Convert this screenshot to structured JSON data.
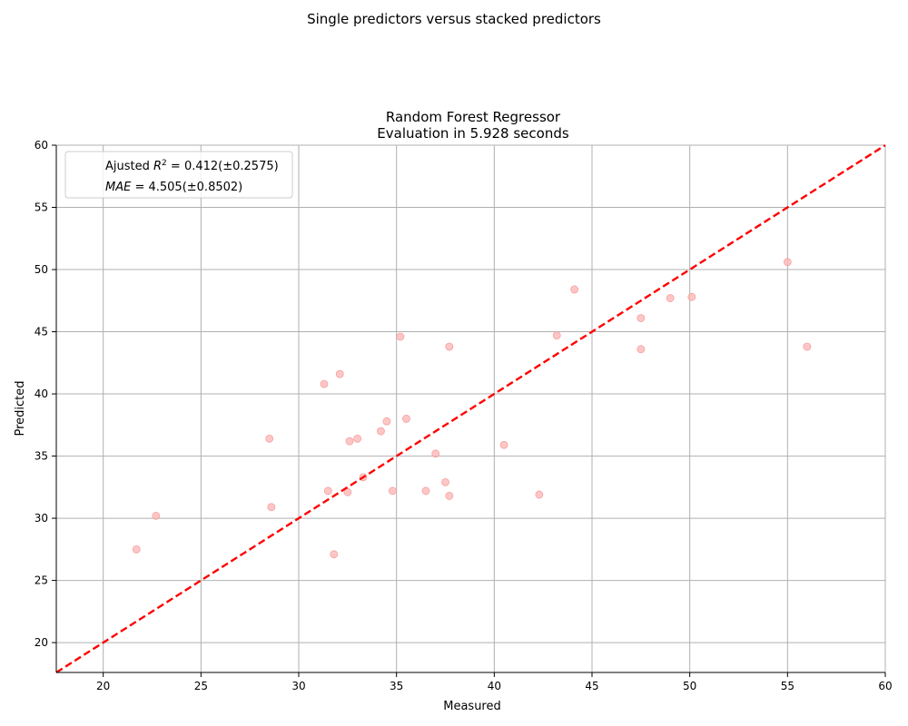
{
  "figure": {
    "suptitle": "Single predictors versus stacked predictors"
  },
  "chart_data": {
    "type": "scatter",
    "title_line1": "Random Forest Regressor",
    "title_line2": "Evaluation in 5.928 seconds",
    "xlabel": "Measured",
    "ylabel": "Predicted",
    "xlim": [
      17.6,
      60
    ],
    "ylim": [
      17.6,
      60
    ],
    "xticks": [
      20,
      25,
      30,
      35,
      40,
      45,
      50,
      55,
      60
    ],
    "yticks": [
      20,
      25,
      30,
      35,
      40,
      45,
      50,
      55,
      60
    ],
    "grid": true,
    "legend_position": "upper-left",
    "legend": {
      "r2_prefix": "Ajusted ",
      "r2_value": " = 0.412(±0.2575)",
      "mae_value": " = 4.505(±0.8502)"
    },
    "reference_line": {
      "style": "dashed",
      "color": "#ff0000",
      "from": [
        17.6,
        17.6
      ],
      "to": [
        60,
        60
      ]
    },
    "point_color": "#ffb3b3",
    "points": [
      {
        "x": 21.7,
        "y": 27.5
      },
      {
        "x": 22.7,
        "y": 30.2
      },
      {
        "x": 28.5,
        "y": 36.4
      },
      {
        "x": 28.6,
        "y": 30.9
      },
      {
        "x": 31.3,
        "y": 40.8
      },
      {
        "x": 31.5,
        "y": 32.2
      },
      {
        "x": 31.8,
        "y": 27.1
      },
      {
        "x": 32.1,
        "y": 41.6
      },
      {
        "x": 32.5,
        "y": 32.1
      },
      {
        "x": 32.6,
        "y": 36.2
      },
      {
        "x": 33.0,
        "y": 36.4
      },
      {
        "x": 33.3,
        "y": 33.3
      },
      {
        "x": 34.2,
        "y": 37.0
      },
      {
        "x": 34.5,
        "y": 37.8
      },
      {
        "x": 34.8,
        "y": 32.2
      },
      {
        "x": 35.2,
        "y": 44.6
      },
      {
        "x": 35.5,
        "y": 38.0
      },
      {
        "x": 36.5,
        "y": 32.2
      },
      {
        "x": 37.0,
        "y": 35.2
      },
      {
        "x": 37.5,
        "y": 32.9
      },
      {
        "x": 37.7,
        "y": 31.8
      },
      {
        "x": 37.7,
        "y": 43.8
      },
      {
        "x": 40.5,
        "y": 35.9
      },
      {
        "x": 42.3,
        "y": 31.9
      },
      {
        "x": 43.2,
        "y": 44.7
      },
      {
        "x": 44.1,
        "y": 48.4
      },
      {
        "x": 47.5,
        "y": 46.1
      },
      {
        "x": 47.5,
        "y": 43.6
      },
      {
        "x": 49.0,
        "y": 47.7
      },
      {
        "x": 50.1,
        "y": 47.8
      },
      {
        "x": 55.0,
        "y": 50.6
      },
      {
        "x": 56.0,
        "y": 43.8
      }
    ]
  }
}
